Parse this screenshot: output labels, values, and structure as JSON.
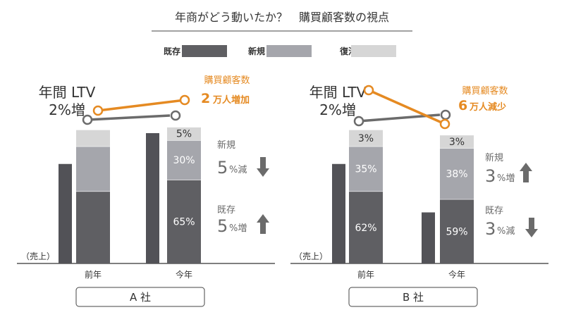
{
  "title": "年商がどう動いたか？　購買顧客数の視点",
  "legend": [
    {
      "label": "既存",
      "color": "#5f5f63"
    },
    {
      "label": "新規",
      "color": "#a5a6ac"
    },
    {
      "label": "復活",
      "color": "#d6d6d6"
    }
  ],
  "colors": {
    "orange": "#e58a22",
    "gray_line": "#6b6b6b",
    "text_gray": "#6b6b6b",
    "outer_bar": "#525257"
  },
  "chart_data": [
    {
      "type": "bar",
      "panel_label": "A 社",
      "categories": [
        "前年",
        "今年"
      ],
      "y_axis_label": "（売上）",
      "ltv_label_line1": "年間 LTV",
      "ltv_label_line2": "2%増",
      "customers_label": "購買顧客数",
      "customers_value": "2",
      "customers_text": "万人増加",
      "outer_bars": {
        "前年": 0.565,
        "今年": 0.74
      },
      "stacks": [
        {
          "category": "前年",
          "segments": [
            {
              "series": "既存",
              "share": 0.41,
              "label": ""
            },
            {
              "series": "新規",
              "share": 0.255,
              "label": ""
            },
            {
              "series": "復活",
              "share": 0.095,
              "label": ""
            }
          ]
        },
        {
          "category": "今年",
          "segments": [
            {
              "series": "既存",
              "share": 0.475,
              "label": "65%"
            },
            {
              "series": "新規",
              "share": 0.225,
              "label": "30%"
            },
            {
              "series": "復活",
              "share": 0.075,
              "label": "5%"
            }
          ]
        }
      ],
      "annotations": [
        {
          "label": "新規",
          "value": "5",
          "unit": "%減",
          "direction": "down"
        },
        {
          "label": "既存",
          "value": "5",
          "unit": "%増",
          "direction": "up"
        }
      ]
    },
    {
      "type": "bar",
      "panel_label": "B 社",
      "categories": [
        "前年",
        "今年"
      ],
      "y_axis_label": "（売上）",
      "ltv_label_line1": "年間 LTV",
      "ltv_label_line2": "2%増",
      "customers_label": "購買顧客数",
      "customers_value": "6",
      "customers_text": "万人減少",
      "outer_bars": {
        "前年": 0.565,
        "今年": 0.29
      },
      "stacks": [
        {
          "category": "前年",
          "segments": [
            {
              "series": "既存",
              "share": 0.41,
              "label": "62%"
            },
            {
              "series": "新規",
              "share": 0.255,
              "label": "35%"
            },
            {
              "series": "復活",
              "share": 0.095,
              "label": "3%"
            }
          ]
        },
        {
          "category": "今年",
          "segments": [
            {
              "series": "既存",
              "share": 0.365,
              "label": "59%"
            },
            {
              "series": "新規",
              "share": 0.29,
              "label": "38%"
            },
            {
              "series": "復活",
              "share": 0.075,
              "label": "3%"
            }
          ]
        }
      ],
      "annotations": [
        {
          "label": "新規",
          "value": "3",
          "unit": "%増",
          "direction": "up"
        },
        {
          "label": "既存",
          "value": "3",
          "unit": "%減",
          "direction": "down"
        }
      ]
    }
  ]
}
